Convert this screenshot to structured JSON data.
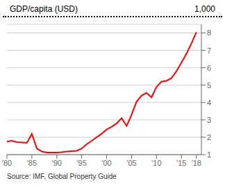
{
  "chart_data": {
    "type": "line",
    "title": "GDP/capita (USD)",
    "ylabel": "1,000",
    "annotations": [
      "Source: IMF, Global Property Guide"
    ],
    "color": "#ff0000",
    "grid": true,
    "xlim": [
      1980,
      2019
    ],
    "xticks": [
      {
        "value": 1980,
        "label": "'80"
      },
      {
        "value": 1985,
        "label": "'85"
      },
      {
        "value": 1990,
        "label": "'90"
      },
      {
        "value": 1995,
        "label": "'95"
      },
      {
        "value": 2000,
        "label": "'00"
      },
      {
        "value": 2005,
        "label": "'05"
      },
      {
        "value": 2010,
        "label": "'10"
      },
      {
        "value": 2015,
        "label": "'15"
      },
      {
        "value": 2018,
        "label": "'18"
      }
    ],
    "ylim": [
      1,
      8.5
    ],
    "yticks": [
      1,
      2,
      3,
      4,
      5,
      6,
      7,
      8
    ],
    "x": [
      1980,
      1981,
      1982,
      1983,
      1984,
      1985,
      1986,
      1987,
      1988,
      1989,
      1990,
      1991,
      1992,
      1993,
      1994,
      1995,
      1996,
      1997,
      1998,
      1999,
      2000,
      2001,
      2002,
      2003,
      2004,
      2005,
      2006,
      2007,
      2008,
      2009,
      2010,
      2011,
      2012,
      2013,
      2014,
      2015,
      2016,
      2017,
      2018
    ],
    "values": [
      1.75,
      1.8,
      1.72,
      1.7,
      1.68,
      2.2,
      1.35,
      1.18,
      1.12,
      1.12,
      1.12,
      1.14,
      1.18,
      1.2,
      1.22,
      1.35,
      1.6,
      1.8,
      2.0,
      2.2,
      2.45,
      2.6,
      2.8,
      3.1,
      2.65,
      3.3,
      4.05,
      4.4,
      4.55,
      4.3,
      4.9,
      5.2,
      5.25,
      5.4,
      5.8,
      6.3,
      6.8,
      7.4,
      8.05
    ]
  }
}
